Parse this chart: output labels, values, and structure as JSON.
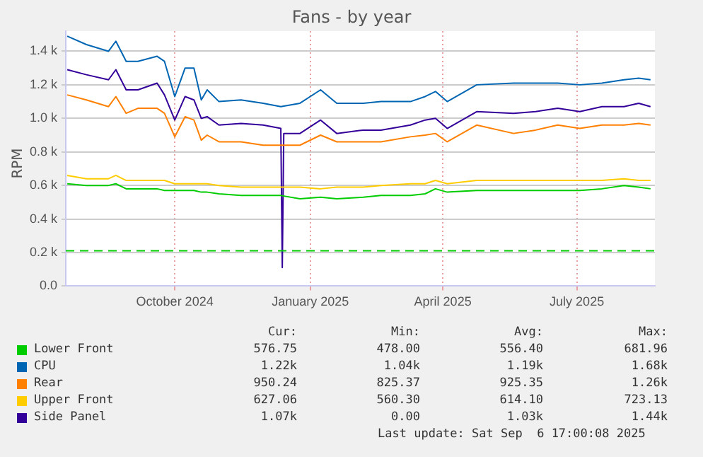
{
  "chart_data": {
    "type": "line",
    "title": "Fans - by year",
    "ylabel": "RPM",
    "x": [
      "2024-08-03",
      "2024-08-16",
      "2024-08-31",
      "2024-09-05",
      "2024-09-12",
      "2024-09-20",
      "2024-10-03",
      "2024-10-08",
      "2024-10-15",
      "2024-10-22",
      "2024-10-28",
      "2024-11-02",
      "2024-11-06",
      "2024-11-14",
      "2024-11-29",
      "2024-12-14",
      "2024-12-26",
      "2025-01-08",
      "2025-01-22",
      "2025-02-02",
      "2025-02-20",
      "2025-03-04",
      "2025-03-24",
      "2025-04-03",
      "2025-04-10",
      "2025-04-18",
      "2025-05-08",
      "2025-06-02",
      "2025-06-17",
      "2025-07-02",
      "2025-07-17",
      "2025-08-01",
      "2025-08-16",
      "2025-08-26",
      "2025-09-03"
    ],
    "series": [
      {
        "name": "Lower Front",
        "color": "#00cc00",
        "values": [
          610,
          600,
          600,
          610,
          580,
          580,
          580,
          570,
          570,
          570,
          570,
          560,
          560,
          550,
          540,
          540,
          540,
          520,
          530,
          520,
          530,
          540,
          540,
          550,
          580,
          560,
          570,
          570,
          570,
          570,
          570,
          580,
          600,
          590,
          580
        ]
      },
      {
        "name": "CPU",
        "color": "#0066b3",
        "values": [
          1490,
          1440,
          1400,
          1460,
          1340,
          1340,
          1370,
          1340,
          1130,
          1300,
          1300,
          1110,
          1170,
          1100,
          1110,
          1090,
          1070,
          1090,
          1170,
          1090,
          1090,
          1100,
          1100,
          1130,
          1160,
          1100,
          1200,
          1210,
          1210,
          1210,
          1200,
          1210,
          1230,
          1240,
          1230
        ]
      },
      {
        "name": "Rear",
        "color": "#ff8000",
        "values": [
          1140,
          1110,
          1070,
          1130,
          1030,
          1060,
          1060,
          1030,
          890,
          1010,
          990,
          870,
          900,
          860,
          860,
          840,
          840,
          840,
          900,
          860,
          860,
          860,
          890,
          900,
          910,
          860,
          960,
          910,
          930,
          960,
          940,
          960,
          960,
          970,
          960
        ]
      },
      {
        "name": "Upper Front",
        "color": "#ffcc00",
        "values": [
          660,
          640,
          640,
          660,
          630,
          630,
          630,
          630,
          610,
          610,
          610,
          610,
          610,
          600,
          590,
          590,
          590,
          590,
          580,
          590,
          590,
          600,
          610,
          610,
          630,
          610,
          630,
          630,
          630,
          630,
          630,
          630,
          640,
          630,
          630
        ]
      },
      {
        "name": "Side Panel",
        "color": "#330099",
        "x": [
          "2024-08-03",
          "2024-08-16",
          "2024-08-31",
          "2024-09-05",
          "2024-09-12",
          "2024-09-20",
          "2024-10-03",
          "2024-10-08",
          "2024-10-15",
          "2024-10-22",
          "2024-10-28",
          "2024-11-02",
          "2024-11-06",
          "2024-11-14",
          "2024-11-29",
          "2024-12-14",
          "2024-12-26",
          "2024-12-27",
          "2024-12-28",
          "2025-01-08",
          "2025-01-22",
          "2025-02-02",
          "2025-02-20",
          "2025-03-04",
          "2025-03-24",
          "2025-04-03",
          "2025-04-10",
          "2025-04-18",
          "2025-05-08",
          "2025-06-02",
          "2025-06-17",
          "2025-07-02",
          "2025-07-17",
          "2025-08-01",
          "2025-08-16",
          "2025-08-26",
          "2025-09-03"
        ],
        "values": [
          1290,
          1260,
          1230,
          1290,
          1170,
          1170,
          1210,
          1140,
          990,
          1130,
          1110,
          1000,
          1010,
          960,
          970,
          960,
          940,
          110,
          910,
          910,
          990,
          910,
          930,
          930,
          960,
          990,
          1000,
          940,
          1040,
          1030,
          1040,
          1060,
          1040,
          1070,
          1070,
          1090,
          1070
        ]
      }
    ],
    "ref_lines": [
      {
        "axis": "y",
        "value": 210,
        "color": "#00cc00",
        "line_style": "dashed"
      }
    ],
    "xlim": [
      "2024-08-02",
      "2025-09-06"
    ],
    "xticks": [
      {
        "value": "2024-10-15",
        "label": "October 2024"
      },
      {
        "value": "2025-01-15",
        "label": "January 2025"
      },
      {
        "value": "2025-04-15",
        "label": "April 2025"
      },
      {
        "value": "2025-07-15",
        "label": "July 2025"
      }
    ],
    "ylim": [
      0,
      1520
    ],
    "yticks": [
      {
        "value": 0,
        "label": "0.0"
      },
      {
        "value": 200,
        "label": "0.2 k"
      },
      {
        "value": 400,
        "label": "0.4 k"
      },
      {
        "value": 600,
        "label": "0.6 k"
      },
      {
        "value": 800,
        "label": "0.8 k"
      },
      {
        "value": 1000,
        "label": "1.0 k"
      },
      {
        "value": 1200,
        "label": "1.2 k"
      },
      {
        "value": 1400,
        "label": "1.4 k"
      }
    ],
    "grid": true,
    "legend": "bottom",
    "marker": "none",
    "line_style": "solid",
    "annotations": [
      "Cur:",
      "Min:",
      "Avg:",
      "Max:",
      "576.75",
      "478.00",
      "556.40",
      "681.96",
      "1.22k",
      "1.04k",
      "1.19k",
      "1.68k",
      "950.24",
      "825.37",
      "925.35",
      "1.26k",
      "627.06",
      "560.30",
      "614.10",
      "723.13",
      "1.07k",
      "0.00",
      "1.03k",
      "1.44k",
      "Last update: Sat Sep  6 17:00:08 2025"
    ]
  }
}
